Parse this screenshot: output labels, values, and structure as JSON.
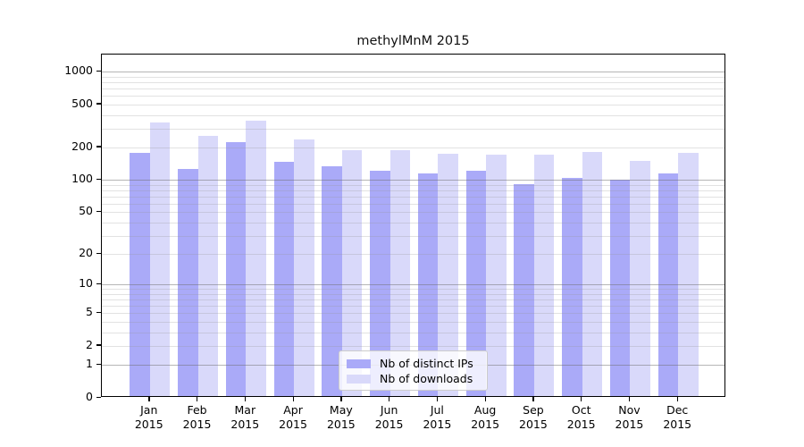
{
  "title": "methylMnM 2015",
  "chart_data": {
    "type": "bar",
    "title": "methylMnM 2015",
    "categories": [
      "Jan",
      "Feb",
      "Mar",
      "Apr",
      "May",
      "Jun",
      "Jul",
      "Aug",
      "Sep",
      "Oct",
      "Nov",
      "Dec"
    ],
    "xtick_year_line": "2015",
    "series": [
      {
        "name": "Nb of distinct IPs",
        "color": "#aaaaf8",
        "values": [
          173,
          123,
          216,
          143,
          128,
          117,
          111,
          117,
          88,
          101,
          97,
          111
        ]
      },
      {
        "name": "Nb of downloads",
        "color": "#d9d9fa",
        "values": [
          326,
          248,
          341,
          229,
          181,
          181,
          169,
          164,
          165,
          175,
          145,
          172
        ]
      }
    ],
    "yscale": "log1p",
    "ylim": [
      0,
      1440
    ],
    "yticks": [
      0,
      1,
      2,
      5,
      10,
      20,
      50,
      100,
      200,
      500,
      1000
    ],
    "grid": {
      "major_lines": [
        1,
        10,
        100,
        1000
      ],
      "minor_lines_per_decade": [
        2,
        3,
        4,
        5,
        6,
        7,
        8,
        9
      ],
      "major_color": "#b3b3b3",
      "minor_color": "#e6e6e6"
    },
    "legend_position": "lower-center",
    "xlabel": "",
    "ylabel": ""
  }
}
